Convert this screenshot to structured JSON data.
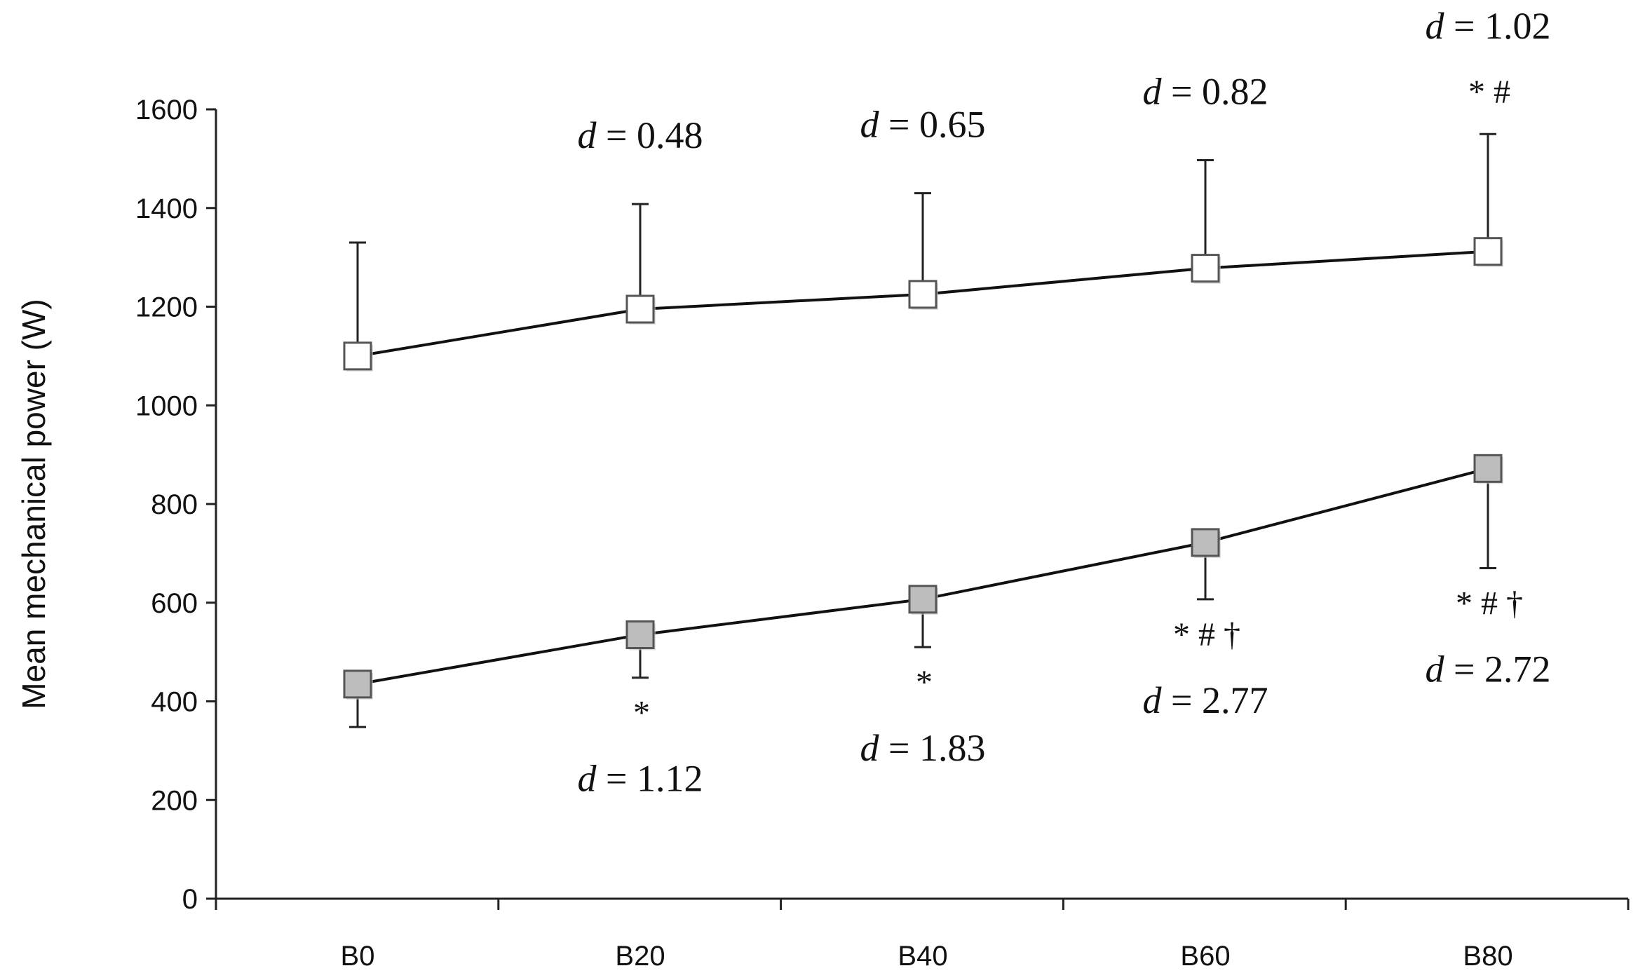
{
  "chart_data": {
    "type": "line",
    "title": "",
    "xlabel": "",
    "ylabel": "Mean mechanical power  (W)",
    "ylim": [
      0,
      1600
    ],
    "yticks": [
      "0",
      "200",
      "400",
      "600",
      "800",
      "1000",
      "1200",
      "1400",
      "1600"
    ],
    "grid": false,
    "legend": "none",
    "categories": [
      "B0",
      "B20",
      "B40",
      "B60",
      "B80"
    ],
    "series": [
      {
        "marker": "open-square",
        "color": "#ffffff",
        "values": [
          1100,
          1195,
          1225,
          1278,
          1312
        ],
        "error_upper": [
          1330,
          1408,
          1430,
          1497,
          1550
        ],
        "annotations": [
          "",
          "d = 0.48",
          "d = 0.65",
          "d = 0.82",
          "d = 1.02"
        ],
        "symbols": [
          "",
          "",
          "",
          "",
          "*  #"
        ]
      },
      {
        "marker": "filled-square",
        "color": "#bdbdbd",
        "values": [
          435,
          535,
          607,
          722,
          872
        ],
        "error_lower": [
          348,
          448,
          510,
          607,
          670
        ],
        "annotations": [
          "",
          "d = 1.12",
          "d = 1.83",
          "d = 2.77",
          "d = 2.72"
        ],
        "symbols": [
          "",
          "*",
          "*",
          "* #  †",
          "* #  †"
        ]
      }
    ]
  }
}
